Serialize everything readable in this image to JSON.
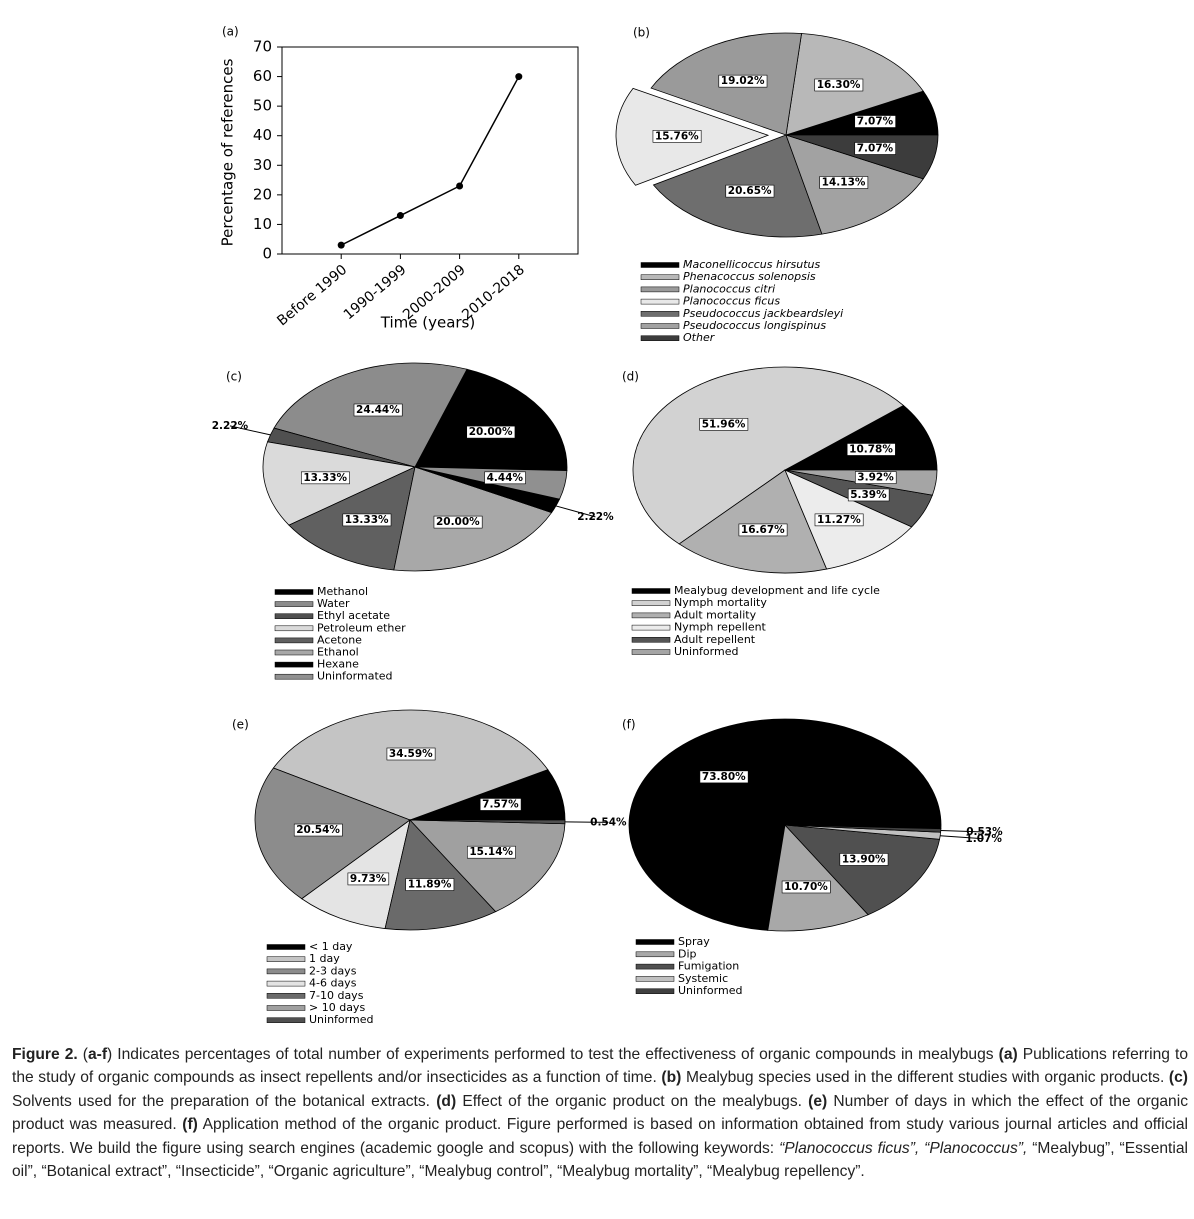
{
  "chart_data": [
    {
      "type": "line",
      "label": "(a)",
      "x_label": "Time (years)",
      "y_label": "Percentage of references",
      "categories": [
        "Before 1990",
        "1990-1999",
        "2000-2009",
        "2010-2018"
      ],
      "values": [
        3,
        13,
        23,
        60
      ],
      "color": "#000000",
      "ylim": [
        0,
        70
      ],
      "yticks": [
        0,
        10,
        20,
        30,
        40,
        50,
        60,
        70
      ]
    },
    {
      "type": "pie",
      "label": "(b)",
      "categories": [
        "Maconellicoccus hirsutus",
        "Phenacoccus solenopsis",
        "Planococcus citri",
        "Planococcus ficus",
        "Pseudococcus jackbeardsleyi",
        "Pseudococcus longispinus",
        "Other"
      ],
      "values": [
        7.07,
        16.3,
        19.02,
        15.76,
        20.65,
        14.13,
        7.07
      ],
      "value_labels": [
        "7.07%",
        "16.30%",
        "19.02%",
        "15.76%",
        "20.65%",
        "14.13%",
        "7.07%"
      ],
      "colors": [
        "#000000",
        "#b8b8b8",
        "#9a9a9a",
        "#e8e8e8",
        "#6e6e6e",
        "#a2a2a2",
        "#3c3c3c"
      ]
    },
    {
      "type": "pie",
      "label": "(c)",
      "categories": [
        "Methanol",
        "Water",
        "Ethyl acetate",
        "Petroleum ether",
        "Acetone",
        "Ethanol",
        "Hexane",
        "Uninformated"
      ],
      "values": [
        20.0,
        24.44,
        2.22,
        13.33,
        13.33,
        20.0,
        2.22,
        4.44
      ],
      "value_labels": [
        "20.00%",
        "24.44%",
        "2.22%",
        "13.33%",
        "13.33%",
        "20.00%",
        "2.22%",
        "4.44%"
      ],
      "colors": [
        "#000000",
        "#8c8c8c",
        "#505050",
        "#dadada",
        "#606060",
        "#a8a8a8",
        "#000000",
        "#909090"
      ]
    },
    {
      "type": "pie",
      "label": "(d)",
      "categories": [
        "Mealybug development and life cycle",
        "Nymph mortality",
        "Adult mortality",
        "Nymph repellent",
        "Adult repellent",
        "Uninformed"
      ],
      "values": [
        10.78,
        51.96,
        16.67,
        11.27,
        5.39,
        3.92
      ],
      "value_labels": [
        "10.78%",
        "51.96%",
        "16.67%",
        "11.27%",
        "5.39%",
        "3.92%"
      ],
      "colors": [
        "#000000",
        "#d2d2d2",
        "#b0b0b0",
        "#ececec",
        "#555555",
        "#a5a5a5"
      ]
    },
    {
      "type": "pie",
      "label": "(e)",
      "categories": [
        "< 1 day",
        "1 day",
        "2-3 days",
        "4-6 days",
        "7-10 days",
        "> 10 days",
        "Uninformed"
      ],
      "values": [
        7.57,
        34.59,
        20.54,
        9.73,
        11.89,
        15.14,
        0.54
      ],
      "value_labels": [
        "7.57%",
        "34.59%",
        "20.54%",
        "9.73%",
        "11.89%",
        "15.14%",
        "0.54%"
      ],
      "colors": [
        "#000000",
        "#c4c4c4",
        "#8c8c8c",
        "#e4e4e4",
        "#6a6a6a",
        "#a0a0a0",
        "#505050"
      ]
    },
    {
      "type": "pie",
      "label": "(f)",
      "categories": [
        "Spray",
        "Dip",
        "Fumigation",
        "Systemic",
        "Uninformed"
      ],
      "values": [
        73.8,
        10.7,
        13.9,
        1.07,
        0.53
      ],
      "value_labels": [
        "73.80%",
        "10.70%",
        "13.90%",
        "1.07%",
        "0.53%"
      ],
      "colors": [
        "#000000",
        "#a8a8a8",
        "#505050",
        "#c0c0c0",
        "#404040"
      ]
    }
  ],
  "caption": [
    "Figure 2.",
    " (",
    "a-f",
    ") Indicates percentages of total number of experiments performed to test the effectiveness of organic compounds in mealybugs ",
    "(a)",
    " Publications referring to the study of organic compounds as insect repellents and/or insecticides as a function of time. ",
    "(b)",
    " Mealybug species used in the different studies with organic products. ",
    "(c)",
    " Solvents used for the preparation of the botanical extracts. ",
    "(d)",
    " Effect of the organic product on the mealybugs. ",
    "(e)",
    " Number of days in which the effect of the organic product was measured. ",
    "(f)",
    " Application method of the organic product. Figure performed is based on information obtained from study various journal articles and official reports. We build the figure using search engines (academic google and scopus) with the following keywords: ",
    "“Planococcus ficus”, “Planococcus”,",
    " “Mealybug”, “Essential oil”, “Botanical extract”, “Insecticide”, “Organic agriculture”, “Mealybug control”, “Mealybug mortality”, “Mealybug repellency”."
  ]
}
